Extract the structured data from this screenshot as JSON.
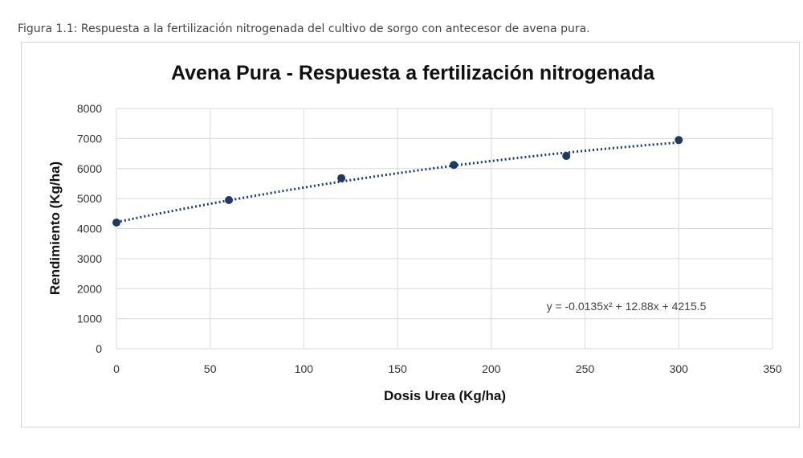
{
  "caption": "Figura 1.1: Respuesta a la fertilización nitrogenada del cultivo de sorgo con antecesor de avena pura.",
  "chart_data": {
    "type": "scatter",
    "title": "Avena Pura  - Respuesta a fertilización nitrogenada",
    "xlabel": "Dosis Urea (Kg/ha)",
    "ylabel": "Rendimiento (Kg/ha)",
    "xlim": [
      0,
      350
    ],
    "ylim": [
      0,
      8000
    ],
    "xticks": [
      0,
      50,
      100,
      150,
      200,
      250,
      300,
      350
    ],
    "yticks": [
      0,
      1000,
      2000,
      3000,
      4000,
      5000,
      6000,
      7000,
      8000
    ],
    "grid": true,
    "series": [
      {
        "x": [
          0,
          60,
          120,
          180,
          240,
          300
        ],
        "y": [
          4200,
          4950,
          5680,
          6120,
          6420,
          6950
        ],
        "color": "#1f3864"
      }
    ],
    "trendline": {
      "type": "polynomial",
      "coefficients": [
        -0.0135,
        12.88,
        4215.5
      ],
      "x_range": [
        0,
        300
      ],
      "style": "dotted",
      "color": "#1f3864",
      "equation_label": "y = -0.0135x² + 12.88x + 4215.5"
    }
  }
}
